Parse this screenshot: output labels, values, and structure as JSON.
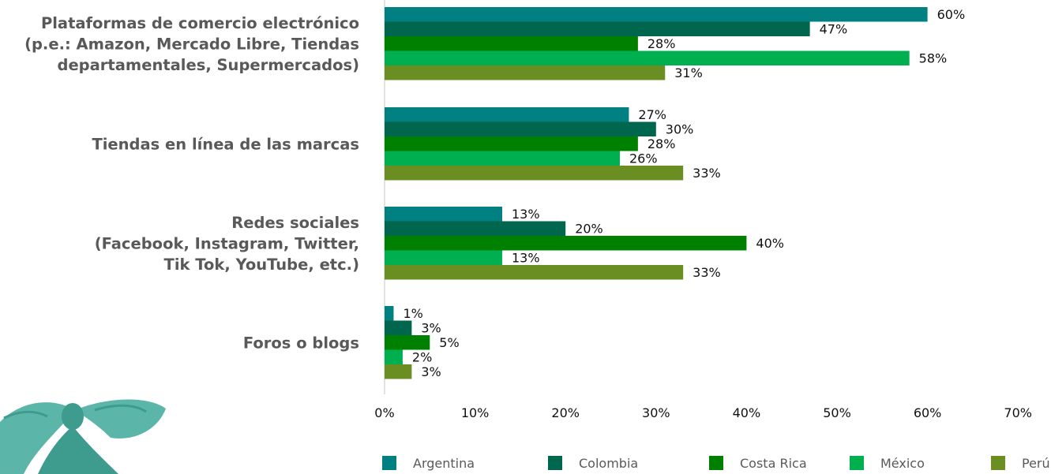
{
  "chart_data": {
    "type": "bar",
    "orientation": "horizontal",
    "categories": [
      [
        "Plataformas de comercio electrónico",
        "(p.e.: Amazon, Mercado Libre, Tiendas",
        "departamentales, Supermercados)"
      ],
      [
        "Tiendas en línea de las marcas"
      ],
      [
        "Redes sociales",
        "(Facebook, Instagram, Twitter,",
        "Tik Tok, YouTube, etc.)"
      ],
      [
        "Foros o blogs"
      ]
    ],
    "series": [
      {
        "name": "Argentina",
        "color": "#008080",
        "values": [
          60,
          27,
          13,
          1
        ]
      },
      {
        "name": "Colombia",
        "color": "#00664D",
        "values": [
          47,
          30,
          20,
          3
        ]
      },
      {
        "name": "Costa Rica",
        "color": "#008000",
        "values": [
          28,
          28,
          40,
          5
        ]
      },
      {
        "name": "México",
        "color": "#00B050",
        "values": [
          58,
          26,
          13,
          2
        ]
      },
      {
        "name": "Perú",
        "color": "#6B8E23",
        "values": [
          31,
          33,
          33,
          3
        ]
      }
    ],
    "value_suffix": "%",
    "xlim": [
      0,
      70
    ],
    "xticks": [
      "0%",
      "10%",
      "20%",
      "30%",
      "40%",
      "50%",
      "60%",
      "70%"
    ],
    "grid": false,
    "legend_position": "bottom",
    "decoration": {
      "bow_color": "#5BB5A8",
      "bow_dark": "#3E9C8E"
    }
  }
}
